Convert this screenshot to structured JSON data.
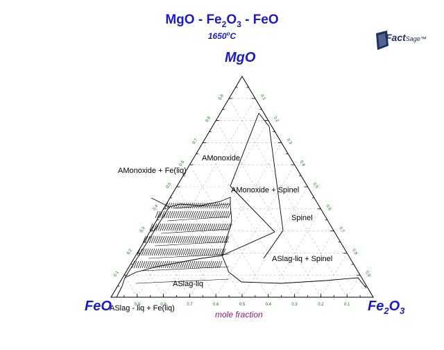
{
  "title": {
    "part1": "MgO - Fe",
    "sub1": "2",
    "part2": "O",
    "sub2": "3",
    "part3": " - FeO"
  },
  "subtitle": {
    "temp": "1650",
    "deg": "o",
    "unit": "C"
  },
  "logo": {
    "brand": "Fact",
    "brand2": "Sage",
    "tm": "™"
  },
  "vertices": {
    "top": "MgO",
    "left": "FeO",
    "right_main": "Fe",
    "right_sub1": "2",
    "right_o": "O",
    "right_sub2": "3"
  },
  "axis_label": "mole fraction",
  "ticks": {
    "bottom": [
      "0.9",
      "0.8",
      "0.7",
      "0.6",
      "0.5",
      "0.4",
      "0.3",
      "0.2",
      "0.1"
    ],
    "left": [
      "0.1",
      "0.2",
      "0.3",
      "0.4",
      "0.5",
      "0.6",
      "0.7",
      "0.8",
      "0.9"
    ],
    "right": [
      "0.1",
      "0.2",
      "0.3",
      "0.4",
      "0.5",
      "0.6",
      "0.7",
      "0.8",
      "0.9"
    ]
  },
  "regions": {
    "amonoxide": "AMonoxide",
    "amonoxide_fe": "AMonoxide + Fe(liq)",
    "amonoxide_spinel": "AMonoxide + Spinel",
    "spinel": "Spinel",
    "aslag_spinel": "ASlag-liq + Spinel",
    "aslag": "ASlag-liq",
    "aslag_fe": "ASlag - liq + Fe(liq)"
  },
  "colors": {
    "title": "#1a1acc",
    "ticks": "#0a7a0a",
    "axis_label": "#8a1a8a",
    "grid": "#bbbbbb"
  }
}
